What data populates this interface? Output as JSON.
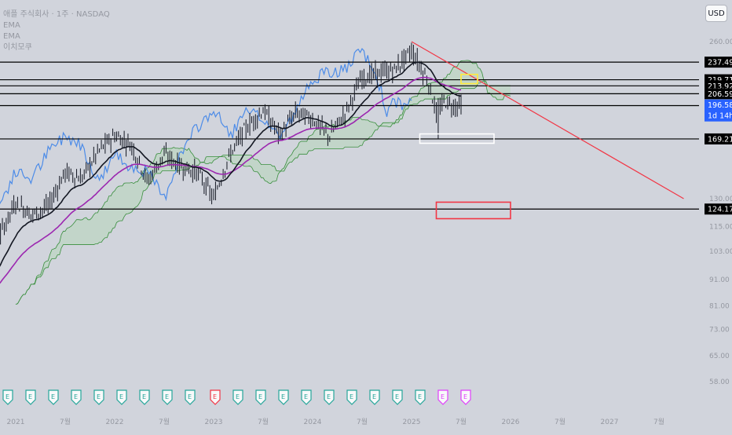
{
  "legend": {
    "symbol": "애플 주식회사 · 1주 · NASDAQ",
    "ind1": "EMA",
    "ind2": "EMA",
    "ind3": "이치모쿠"
  },
  "currency": "USD",
  "colors": {
    "background": "#d1d4dc",
    "price_bars": "#131722",
    "ema_fast": "#131722",
    "ema_slow": "#9c27b0",
    "lagging": "#4d8ce8",
    "cloud_fill": "#a5d6a7",
    "cloud_line": "#388e3c",
    "trendline": "#f23645",
    "support_box": "#ffffff",
    "target_box": "#f23645",
    "yellow_box": "#ffeb3b",
    "last_price_bg": "#2962ff"
  },
  "chart_data": {
    "type": "candlestick",
    "timeframe": "1W",
    "x_ticks": [
      "2021",
      "7월",
      "2022",
      "7월",
      "2023",
      "7월",
      "2024",
      "7월",
      "2025",
      "7월",
      "2026",
      "7월",
      "2027",
      "7월"
    ],
    "y_ticks": [
      260.0,
      130.0,
      115.0,
      103.0,
      91.0,
      81.0,
      73.0,
      65.0,
      58.0
    ],
    "y_scale": "log",
    "horizontal_levels": [
      237.49,
      219.71,
      213.92,
      206.59,
      196.0,
      169.21,
      124.17
    ],
    "last_price": 196.58,
    "countdown": "1d 14h",
    "price_path": [
      {
        "date": "2021-01",
        "close": 128
      },
      {
        "date": "2021-03",
        "close": 121
      },
      {
        "date": "2021-05",
        "close": 126
      },
      {
        "date": "2021-07",
        "close": 146
      },
      {
        "date": "2021-09",
        "close": 142
      },
      {
        "date": "2021-11",
        "close": 160
      },
      {
        "date": "2022-01",
        "close": 172
      },
      {
        "date": "2022-03",
        "close": 165
      },
      {
        "date": "2022-05",
        "close": 140
      },
      {
        "date": "2022-07",
        "close": 158
      },
      {
        "date": "2022-09",
        "close": 150
      },
      {
        "date": "2022-11",
        "close": 146
      },
      {
        "date": "2023-01",
        "close": 130
      },
      {
        "date": "2023-03",
        "close": 158
      },
      {
        "date": "2023-05",
        "close": 178
      },
      {
        "date": "2023-07",
        "close": 192
      },
      {
        "date": "2023-09",
        "close": 172
      },
      {
        "date": "2023-11",
        "close": 190
      },
      {
        "date": "2024-01",
        "close": 185
      },
      {
        "date": "2024-03",
        "close": 171
      },
      {
        "date": "2024-05",
        "close": 190
      },
      {
        "date": "2024-07",
        "close": 222
      },
      {
        "date": "2024-09",
        "close": 226
      },
      {
        "date": "2024-11",
        "close": 230
      },
      {
        "date": "2025-01",
        "close": 250
      },
      {
        "date": "2025-03",
        "close": 218
      },
      {
        "date": "2025-04",
        "close": 190
      },
      {
        "date": "2025-05",
        "close": 200
      },
      {
        "date": "2025-06",
        "close": 196
      },
      {
        "date": "2025-07",
        "close": 197
      }
    ],
    "trendline": {
      "from": {
        "date": "2025-01",
        "price": 260
      },
      "to": {
        "date": "2027-10",
        "price": 130
      }
    },
    "zones": [
      {
        "name": "support",
        "from": "2025-02",
        "to": "2025-11",
        "low": 166,
        "high": 173
      },
      {
        "name": "target",
        "from": "2025-04",
        "to": "2026-01",
        "low": 119,
        "high": 128
      },
      {
        "name": "resistance",
        "from": "2025-07",
        "to": "2025-09",
        "low": 216,
        "high": 225
      }
    ],
    "earnings_markers": 21
  }
}
